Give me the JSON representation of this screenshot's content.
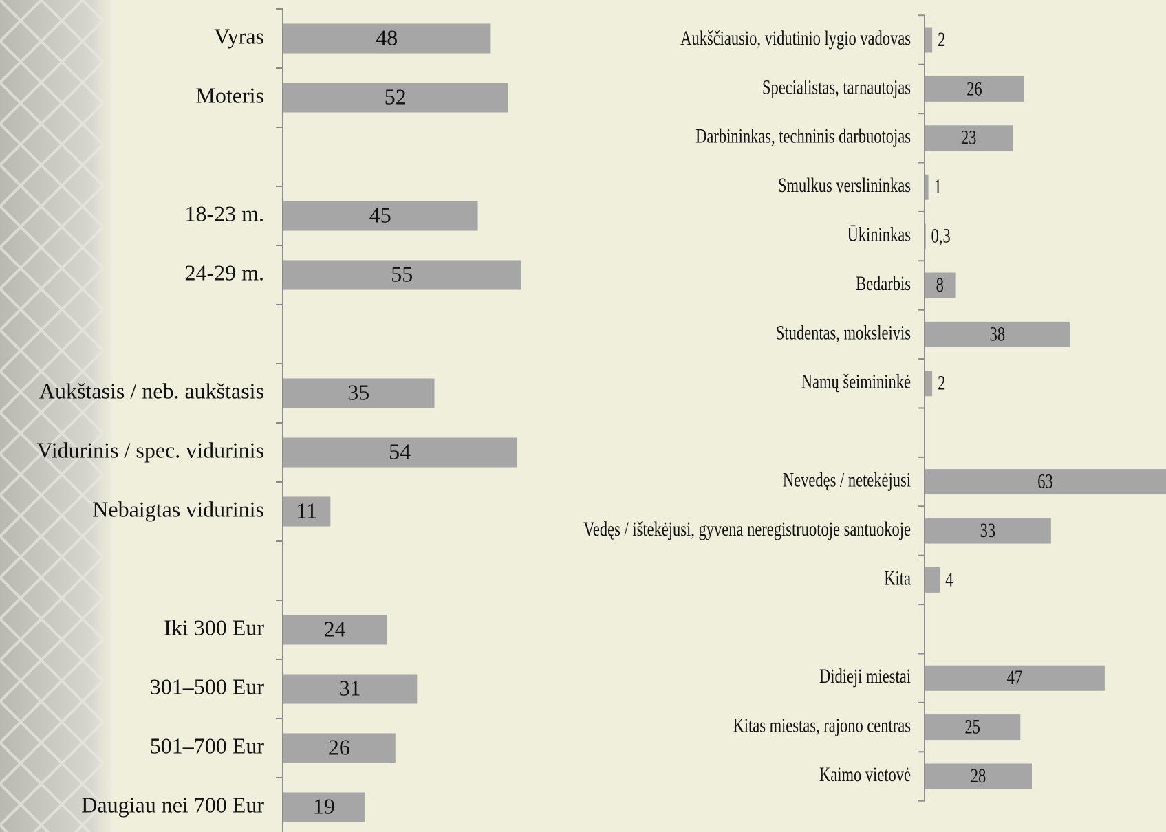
{
  "chart_data": [
    {
      "type": "bar",
      "orientation": "horizontal",
      "color": "#a6a6a6",
      "xlim": [
        0,
        60
      ],
      "categories": [
        "Vyras",
        "Moteris",
        null,
        "18-23 m.",
        "24-29 m.",
        null,
        "Aukštasis / neb. aukštasis",
        "Vidurinis / spec. vidurinis",
        "Nebaigtas vidurinis",
        null,
        "Iki 300 Eur",
        "301–500 Eur",
        "501–700 Eur",
        "Daugiau nei 700 Eur"
      ],
      "values": [
        48,
        52,
        null,
        45,
        55,
        null,
        35,
        54,
        11,
        null,
        24,
        31,
        26,
        19
      ]
    },
    {
      "type": "bar",
      "orientation": "horizontal",
      "color": "#a6a6a6",
      "xlim": [
        0,
        63
      ],
      "categories": [
        "Aukščiausio, vidutinio lygio vadovas",
        "Specialistas, tarnautojas",
        "Darbininkas, techninis darbuotojas",
        "Smulkus verslininkas",
        "Ūkininkas",
        "Bedarbis",
        "Studentas, moksleivis",
        "Namų šeimininkė",
        null,
        "Nevedęs / netekėjusi",
        "Vedęs / ištekėjusi, gyvena neregistruotoje santuokoje",
        "Kita",
        null,
        "Didieji miestai",
        "Kitas miestas, rajono centras",
        "Kaimo vietovė"
      ],
      "values": [
        2,
        26,
        23,
        1,
        0.3,
        8,
        38,
        2,
        null,
        63,
        33,
        4,
        null,
        47,
        25,
        28
      ],
      "value_labels": [
        "2",
        "26",
        "23",
        "1",
        "0,3",
        "8",
        "38",
        "2",
        null,
        "63",
        "33",
        "4",
        null,
        "47",
        "25",
        "28"
      ]
    }
  ]
}
